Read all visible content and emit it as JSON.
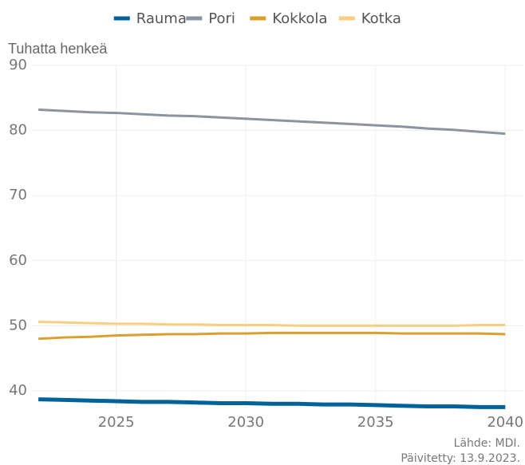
{
  "chart_data": {
    "type": "line",
    "y_label": "Tuhatta henkeä",
    "source": "Lähde: MDI.",
    "updated": "Päivitetty: 13.9.2023.",
    "x": [
      2022,
      2023,
      2024,
      2025,
      2026,
      2027,
      2028,
      2029,
      2030,
      2031,
      2032,
      2033,
      2034,
      2035,
      2036,
      2037,
      2038,
      2039,
      2040
    ],
    "series": [
      {
        "name": "Rauma",
        "color": "#00629b",
        "values": [
          38.7,
          38.6,
          38.5,
          38.4,
          38.3,
          38.3,
          38.2,
          38.1,
          38.1,
          38.0,
          38.0,
          37.9,
          37.9,
          37.8,
          37.7,
          37.6,
          37.6,
          37.5,
          37.5
        ]
      },
      {
        "name": "Pori",
        "color": "#8a959f",
        "values": [
          83.2,
          83.0,
          82.8,
          82.7,
          82.5,
          82.3,
          82.2,
          82.0,
          81.8,
          81.6,
          81.4,
          81.2,
          81.0,
          80.8,
          80.6,
          80.3,
          80.1,
          79.8,
          79.5
        ]
      },
      {
        "name": "Kokkola",
        "color": "#d9a030",
        "values": [
          48.0,
          48.2,
          48.3,
          48.5,
          48.6,
          48.7,
          48.7,
          48.8,
          48.8,
          48.9,
          48.9,
          48.9,
          48.9,
          48.9,
          48.8,
          48.8,
          48.8,
          48.8,
          48.7
        ]
      },
      {
        "name": "Kotka",
        "color": "#f8cf80",
        "values": [
          50.6,
          50.5,
          50.4,
          50.3,
          50.3,
          50.2,
          50.2,
          50.1,
          50.1,
          50.1,
          50.0,
          50.0,
          50.0,
          50.0,
          50.0,
          50.0,
          50.0,
          50.1,
          50.1
        ]
      }
    ],
    "xlim": [
      2021.75,
      2040.7
    ],
    "xticks": [
      2025,
      2030,
      2035,
      2040
    ],
    "ylim": [
      37.3,
      90
    ],
    "yticks": [
      40,
      50,
      60,
      70,
      80,
      90
    ],
    "grid": true,
    "legend": "top"
  }
}
